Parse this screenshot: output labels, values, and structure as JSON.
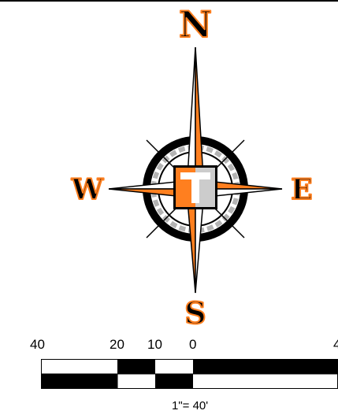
{
  "compass": {
    "north": "N",
    "south": "S",
    "east": "E",
    "west": "W",
    "colors": {
      "accent": "#ff7f1f",
      "needle_dark": "#000000",
      "ring_gray": "#999999",
      "center_gray": "#cccccc"
    },
    "center_logo": "T"
  },
  "scale": {
    "labels": [
      "40",
      "20",
      "10",
      "0",
      "4"
    ],
    "ratio": "1\"= 40'"
  }
}
